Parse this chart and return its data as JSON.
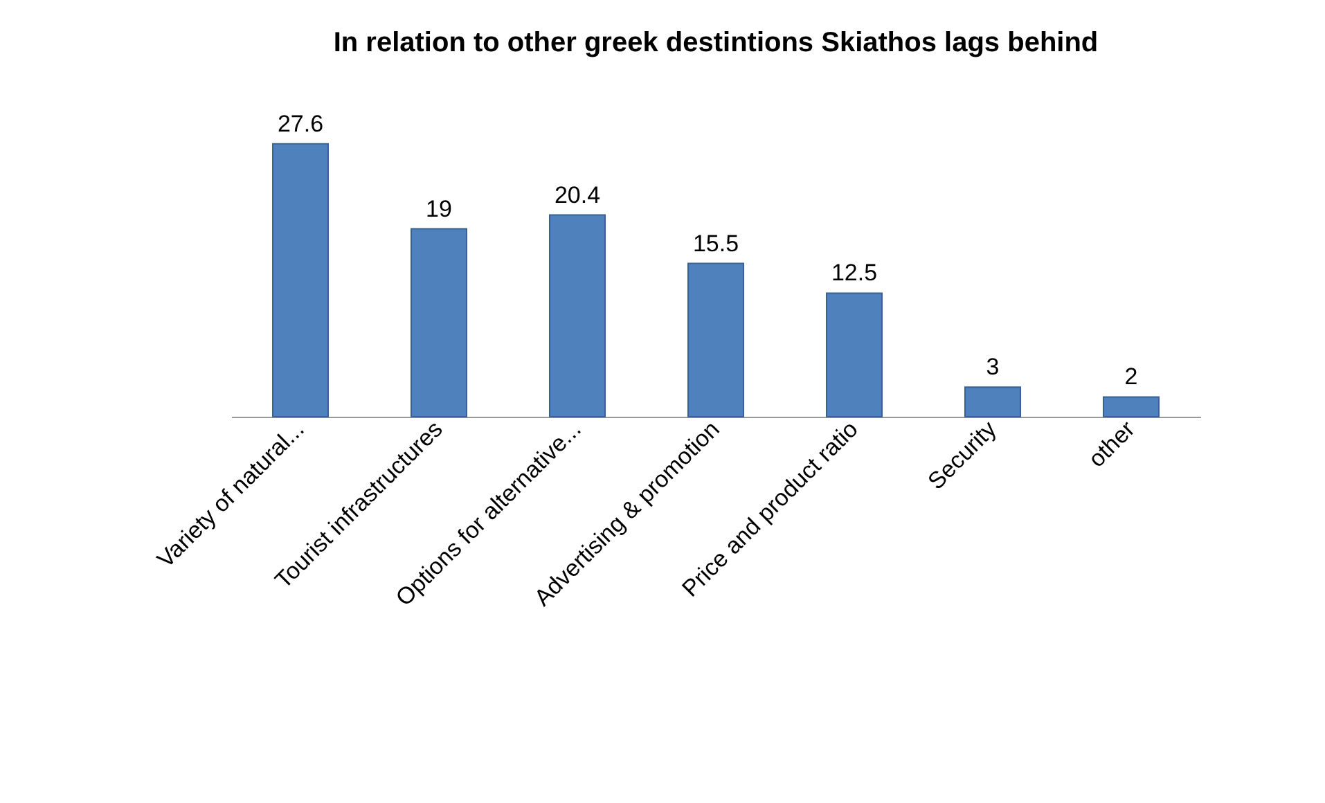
{
  "chart_data": {
    "type": "bar",
    "title": "In relation to other greek destintions Skiathos lags behind",
    "categories": [
      "Variety of natural...",
      "Tourist infrastructures",
      "Options for alternative...",
      "Advertising & promotion",
      "Price and product ratio",
      "Security",
      "other"
    ],
    "values": [
      27.6,
      19,
      20.4,
      15.5,
      12.5,
      3,
      2
    ],
    "color": "#4f81bd",
    "data_labels": true
  }
}
